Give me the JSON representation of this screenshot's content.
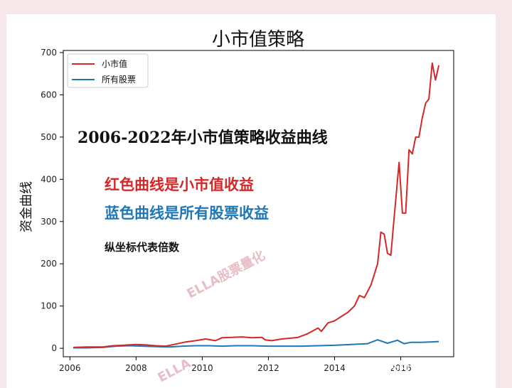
{
  "chart_data": {
    "type": "line",
    "title": "小市值策略",
    "xlabel": "",
    "ylabel": "资金曲线",
    "xlim": [
      2005.8,
      2017.6
    ],
    "ylim": [
      -20,
      705
    ],
    "xticks": [
      2006,
      2008,
      2010,
      2012,
      2014,
      2016
    ],
    "yticks": [
      0,
      100,
      200,
      300,
      400,
      500,
      600,
      700
    ],
    "grid": false,
    "legend": "top-left",
    "series": [
      {
        "name": "小市值",
        "color": "#d62728",
        "x": [
          2006.1,
          2006.5,
          2007.0,
          2007.3,
          2007.6,
          2008.0,
          2008.3,
          2008.6,
          2008.9,
          2009.2,
          2009.5,
          2009.8,
          2010.1,
          2010.4,
          2010.6,
          2010.9,
          2011.2,
          2011.5,
          2011.8,
          2011.9,
          2012.1,
          2012.4,
          2012.7,
          2012.9,
          2013.2,
          2013.5,
          2013.6,
          2013.8,
          2014.0,
          2014.2,
          2014.4,
          2014.6,
          2014.75,
          2014.9,
          2015.0,
          2015.1,
          2015.3,
          2015.4,
          2015.5,
          2015.6,
          2015.7,
          2015.8,
          2015.95,
          2016.05,
          2016.15,
          2016.25,
          2016.35,
          2016.45,
          2016.55,
          2016.65,
          2016.75,
          2016.85,
          2016.95,
          2017.05,
          2017.15
        ],
        "y": [
          2,
          3,
          3,
          6,
          7,
          9,
          8,
          6,
          5,
          10,
          15,
          18,
          22,
          18,
          25,
          26,
          27,
          25,
          26,
          20,
          18,
          22,
          24,
          26,
          35,
          48,
          40,
          60,
          65,
          75,
          85,
          100,
          125,
          120,
          135,
          150,
          200,
          275,
          270,
          225,
          220,
          310,
          440,
          320,
          320,
          470,
          460,
          500,
          500,
          545,
          580,
          590,
          675,
          635,
          670
        ]
      },
      {
        "name": "所有股票",
        "color": "#1f77b4",
        "x": [
          2006.1,
          2006.5,
          2007.0,
          2007.4,
          2007.8,
          2008.2,
          2008.6,
          2009.0,
          2009.4,
          2009.8,
          2010.2,
          2010.6,
          2011.0,
          2011.5,
          2012.0,
          2012.5,
          2013.0,
          2013.5,
          2014.0,
          2014.5,
          2015.0,
          2015.3,
          2015.6,
          2015.9,
          2016.1,
          2016.3,
          2016.6,
          2016.9,
          2017.15
        ],
        "y": [
          1,
          1,
          2,
          5,
          6,
          5,
          4,
          3,
          5,
          6,
          6,
          5,
          6,
          6,
          5,
          5,
          5,
          6,
          7,
          9,
          11,
          20,
          12,
          19,
          11,
          14,
          14,
          15,
          16
        ]
      }
    ]
  },
  "annotations": {
    "main": "2006-2022年小市值策略收益曲线",
    "red": "红色曲线是小市值收益",
    "blue": "蓝色曲线是所有股票收益",
    "small": "纵坐标代表倍数"
  },
  "watermark": {
    "center": "ELLA股票量化",
    "bottom": "ELLA",
    "credit": "知乎 @ELLA股票量化"
  }
}
